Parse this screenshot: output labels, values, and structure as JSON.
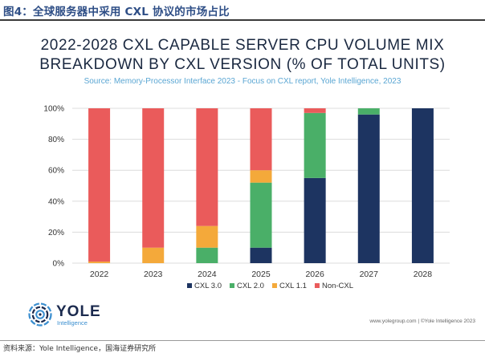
{
  "figure": {
    "label": "图4：全球服务器中采用 CXL 协议的市场占比",
    "source_note": "资料来源：Yole Intelligence，国海证券研究所"
  },
  "logo": {
    "name": "YOLE",
    "tagline": "Intelligence"
  },
  "credit": "www.yolegroup.com | ©Yole Intelligence 2023",
  "colors": {
    "cxl30": "#1d3461",
    "cxl20": "#4aaf68",
    "cxl11": "#f4a93a",
    "noncxl": "#ea5b5b"
  },
  "chart_data": {
    "type": "bar",
    "stacked": true,
    "title_line1": "2022-2028 CXL CAPABLE SERVER CPU VOLUME MIX",
    "title_line2": "BREAKDOWN BY CXL VERSION (% OF TOTAL UNITS)",
    "subtitle": "Source: Memory-Processor Interface 2023 - Focus on CXL  report, Yole Intelligence, 2023",
    "categories": [
      "2022",
      "2023",
      "2024",
      "2025",
      "2026",
      "2027",
      "2028"
    ],
    "series": [
      {
        "name": "CXL 3.0",
        "key": "cxl30",
        "values": [
          0,
          0,
          0,
          10,
          55,
          96,
          100
        ]
      },
      {
        "name": "CXL 2.0",
        "key": "cxl20",
        "values": [
          0,
          0,
          10,
          42,
          42,
          4,
          0
        ]
      },
      {
        "name": "CXL 1.1",
        "key": "cxl11",
        "values": [
          1,
          10,
          14,
          8,
          0,
          0,
          0
        ]
      },
      {
        "name": "Non-CXL",
        "key": "noncxl",
        "values": [
          99,
          90,
          76,
          40,
          3,
          0,
          0
        ]
      }
    ],
    "ylim": [
      0,
      100
    ],
    "yticks": [
      0,
      20,
      40,
      60,
      80,
      100
    ],
    "ytick_labels": [
      "0%",
      "20%",
      "40%",
      "60%",
      "80%",
      "100%"
    ],
    "xlabel": "",
    "ylabel": "",
    "legend_position": "bottom-center"
  }
}
